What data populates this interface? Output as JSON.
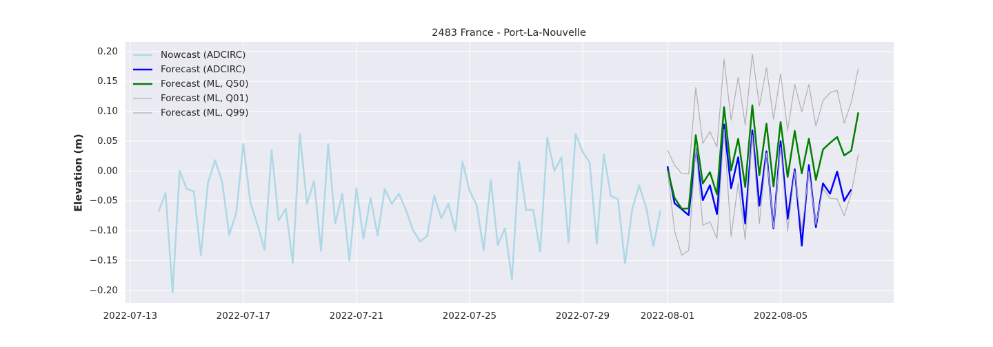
{
  "chart_data": {
    "type": "line",
    "title": "2483 France - Port-La-Nouvelle",
    "y_label": "Elevation (m)",
    "xlim": [
      "2022-07-12T20:00",
      "2022-08-09T00:00"
    ],
    "xticks": [
      "2022-07-13",
      "2022-07-17",
      "2022-07-21",
      "2022-07-25",
      "2022-07-29",
      "2022-08-01",
      "2022-08-05"
    ],
    "ylim": [
      -0.221,
      0.216
    ],
    "yticks": [
      {
        "value": -0.2,
        "label": "−0.20"
      },
      {
        "value": -0.15,
        "label": "−0.15"
      },
      {
        "value": -0.1,
        "label": "−0.10"
      },
      {
        "value": -0.05,
        "label": "−0.05"
      },
      {
        "value": 0,
        "label": "0.00"
      },
      {
        "value": 0.05,
        "label": "0.05"
      },
      {
        "value": 0.1,
        "label": "0.10"
      },
      {
        "value": 0.15,
        "label": "0.15"
      },
      {
        "value": 0.2,
        "label": "0.20"
      }
    ],
    "grid": true,
    "legend": "upper left",
    "series": [
      {
        "name": "Nowcast (ADCIRC)",
        "color": "#add8e6",
        "width": 2.5,
        "x": [
          "2022-07-14T00:00",
          "2022-07-14T06:00",
          "2022-07-14T12:00",
          "2022-07-14T18:00",
          "2022-07-15T00:00",
          "2022-07-15T06:00",
          "2022-07-15T12:00",
          "2022-07-15T18:00",
          "2022-07-16T00:00",
          "2022-07-16T06:00",
          "2022-07-16T12:00",
          "2022-07-16T18:00",
          "2022-07-17T00:00",
          "2022-07-17T06:00",
          "2022-07-17T12:00",
          "2022-07-17T18:00",
          "2022-07-18T00:00",
          "2022-07-18T06:00",
          "2022-07-18T12:00",
          "2022-07-18T18:00",
          "2022-07-19T00:00",
          "2022-07-19T06:00",
          "2022-07-19T12:00",
          "2022-07-19T18:00",
          "2022-07-20T00:00",
          "2022-07-20T06:00",
          "2022-07-20T12:00",
          "2022-07-20T18:00",
          "2022-07-21T00:00",
          "2022-07-21T06:00",
          "2022-07-21T12:00",
          "2022-07-21T18:00",
          "2022-07-22T00:00",
          "2022-07-22T06:00",
          "2022-07-22T12:00",
          "2022-07-22T18:00",
          "2022-07-23T00:00",
          "2022-07-23T06:00",
          "2022-07-23T12:00",
          "2022-07-23T18:00",
          "2022-07-24T00:00",
          "2022-07-24T06:00",
          "2022-07-24T12:00",
          "2022-07-24T18:00",
          "2022-07-25T00:00",
          "2022-07-25T06:00",
          "2022-07-25T12:00",
          "2022-07-25T18:00",
          "2022-07-26T00:00",
          "2022-07-26T06:00",
          "2022-07-26T12:00",
          "2022-07-26T18:00",
          "2022-07-27T00:00",
          "2022-07-27T06:00",
          "2022-07-27T12:00",
          "2022-07-27T18:00",
          "2022-07-28T00:00",
          "2022-07-28T06:00",
          "2022-07-28T12:00",
          "2022-07-28T18:00",
          "2022-07-29T00:00",
          "2022-07-29T06:00",
          "2022-07-29T12:00",
          "2022-07-29T18:00",
          "2022-07-30T00:00",
          "2022-07-30T06:00",
          "2022-07-30T12:00",
          "2022-07-30T18:00",
          "2022-07-31T00:00",
          "2022-07-31T06:00",
          "2022-07-31T12:00",
          "2022-07-31T18:00"
        ],
        "values": [
          -0.068,
          -0.037,
          -0.203,
          0.0,
          -0.03,
          -0.034,
          -0.141,
          -0.02,
          0.018,
          -0.018,
          -0.107,
          -0.07,
          0.045,
          -0.053,
          -0.09,
          -0.132,
          0.035,
          -0.083,
          -0.063,
          -0.154,
          0.062,
          -0.055,
          -0.017,
          -0.134,
          0.045,
          -0.088,
          -0.038,
          -0.15,
          -0.029,
          -0.113,
          -0.045,
          -0.108,
          -0.03,
          -0.055,
          -0.038,
          -0.065,
          -0.099,
          -0.118,
          -0.109,
          -0.041,
          -0.079,
          -0.055,
          -0.1,
          0.016,
          -0.033,
          -0.057,
          -0.133,
          -0.015,
          -0.124,
          -0.096,
          -0.182,
          0.016,
          -0.065,
          -0.065,
          -0.135,
          0.056,
          0.0,
          0.023,
          -0.12,
          0.062,
          0.032,
          0.014,
          -0.122,
          0.028,
          -0.042,
          -0.047,
          -0.155,
          -0.065,
          -0.024,
          -0.062,
          -0.126,
          -0.066
        ]
      },
      {
        "name": "Forecast (ADCIRC)",
        "color": "#0000ff",
        "width": 2.5,
        "x": [
          "2022-08-01T00:00",
          "2022-08-01T06:00",
          "2022-08-01T12:00",
          "2022-08-01T18:00",
          "2022-08-02T00:00",
          "2022-08-02T06:00",
          "2022-08-02T12:00",
          "2022-08-02T18:00",
          "2022-08-03T00:00",
          "2022-08-03T06:00",
          "2022-08-03T12:00",
          "2022-08-03T18:00",
          "2022-08-04T00:00",
          "2022-08-04T06:00",
          "2022-08-04T12:00",
          "2022-08-04T18:00",
          "2022-08-05T00:00",
          "2022-08-05T06:00",
          "2022-08-05T12:00",
          "2022-08-05T18:00",
          "2022-08-06T00:00",
          "2022-08-06T06:00",
          "2022-08-06T12:00",
          "2022-08-06T18:00",
          "2022-08-07T00:00",
          "2022-08-07T06:00",
          "2022-08-07T12:00"
        ],
        "values": [
          0.008,
          -0.054,
          -0.064,
          -0.074,
          0.038,
          -0.049,
          -0.024,
          -0.072,
          0.078,
          -0.029,
          0.023,
          -0.088,
          0.068,
          -0.058,
          0.033,
          -0.096,
          0.05,
          -0.08,
          0.003,
          -0.125,
          0.01,
          -0.094,
          -0.021,
          -0.038,
          -0.001,
          -0.05,
          -0.031
        ]
      },
      {
        "name": "Forecast (ML, Q50)",
        "color": "#008000",
        "width": 2.5,
        "x": [
          "2022-08-01T00:00",
          "2022-08-01T06:00",
          "2022-08-01T12:00",
          "2022-08-01T18:00",
          "2022-08-02T00:00",
          "2022-08-02T06:00",
          "2022-08-02T12:00",
          "2022-08-02T18:00",
          "2022-08-03T00:00",
          "2022-08-03T06:00",
          "2022-08-03T12:00",
          "2022-08-03T18:00",
          "2022-08-04T00:00",
          "2022-08-04T06:00",
          "2022-08-04T12:00",
          "2022-08-04T18:00",
          "2022-08-05T00:00",
          "2022-08-05T06:00",
          "2022-08-05T12:00",
          "2022-08-05T18:00",
          "2022-08-06T00:00",
          "2022-08-06T06:00",
          "2022-08-06T12:00",
          "2022-08-06T18:00",
          "2022-08-07T00:00",
          "2022-08-07T06:00",
          "2022-08-07T12:00",
          "2022-08-07T18:00"
        ],
        "values": [
          0.003,
          -0.045,
          -0.063,
          -0.063,
          0.06,
          -0.021,
          -0.002,
          -0.039,
          0.107,
          0.001,
          0.054,
          -0.027,
          0.11,
          -0.007,
          0.079,
          -0.026,
          0.082,
          -0.01,
          0.067,
          -0.004,
          0.054,
          -0.015,
          0.036,
          0.047,
          0.057,
          0.026,
          0.034,
          0.098
        ]
      },
      {
        "name": "Forecast (ML, Q01)",
        "color": "#b0b0b0",
        "width": 1.2,
        "x": [
          "2022-08-01T00:00",
          "2022-08-01T06:00",
          "2022-08-01T12:00",
          "2022-08-01T18:00",
          "2022-08-02T00:00",
          "2022-08-02T06:00",
          "2022-08-02T12:00",
          "2022-08-02T18:00",
          "2022-08-03T00:00",
          "2022-08-03T06:00",
          "2022-08-03T12:00",
          "2022-08-03T18:00",
          "2022-08-04T00:00",
          "2022-08-04T06:00",
          "2022-08-04T12:00",
          "2022-08-04T18:00",
          "2022-08-05T00:00",
          "2022-08-05T06:00",
          "2022-08-05T12:00",
          "2022-08-05T18:00",
          "2022-08-06T00:00",
          "2022-08-06T06:00",
          "2022-08-06T12:00",
          "2022-08-06T18:00",
          "2022-08-07T00:00",
          "2022-08-07T06:00",
          "2022-08-07T12:00",
          "2022-08-07T18:00"
        ],
        "values": [
          0.0,
          -0.1,
          -0.141,
          -0.133,
          0.04,
          -0.091,
          -0.085,
          -0.113,
          0.07,
          -0.11,
          -0.02,
          -0.115,
          0.06,
          -0.088,
          0.03,
          -0.095,
          0.04,
          -0.101,
          0.0,
          -0.1,
          0.0,
          -0.09,
          -0.03,
          -0.046,
          -0.047,
          -0.075,
          -0.038,
          0.028
        ]
      },
      {
        "name": "Forecast (ML, Q99)",
        "color": "#b0b0b0",
        "width": 1.2,
        "x": [
          "2022-08-01T00:00",
          "2022-08-01T06:00",
          "2022-08-01T12:00",
          "2022-08-01T18:00",
          "2022-08-02T00:00",
          "2022-08-02T06:00",
          "2022-08-02T12:00",
          "2022-08-02T18:00",
          "2022-08-03T00:00",
          "2022-08-03T06:00",
          "2022-08-03T12:00",
          "2022-08-03T18:00",
          "2022-08-04T00:00",
          "2022-08-04T06:00",
          "2022-08-04T12:00",
          "2022-08-04T18:00",
          "2022-08-05T00:00",
          "2022-08-05T06:00",
          "2022-08-05T12:00",
          "2022-08-05T18:00",
          "2022-08-06T00:00",
          "2022-08-06T06:00",
          "2022-08-06T12:00",
          "2022-08-06T18:00",
          "2022-08-07T00:00",
          "2022-08-07T06:00",
          "2022-08-07T12:00",
          "2022-08-07T18:00"
        ],
        "values": [
          0.035,
          0.01,
          -0.004,
          -0.005,
          0.14,
          0.046,
          0.066,
          0.04,
          0.187,
          0.085,
          0.157,
          0.077,
          0.196,
          0.109,
          0.173,
          0.087,
          0.163,
          0.068,
          0.145,
          0.099,
          0.145,
          0.075,
          0.118,
          0.131,
          0.135,
          0.08,
          0.115,
          0.172
        ]
      }
    ]
  }
}
